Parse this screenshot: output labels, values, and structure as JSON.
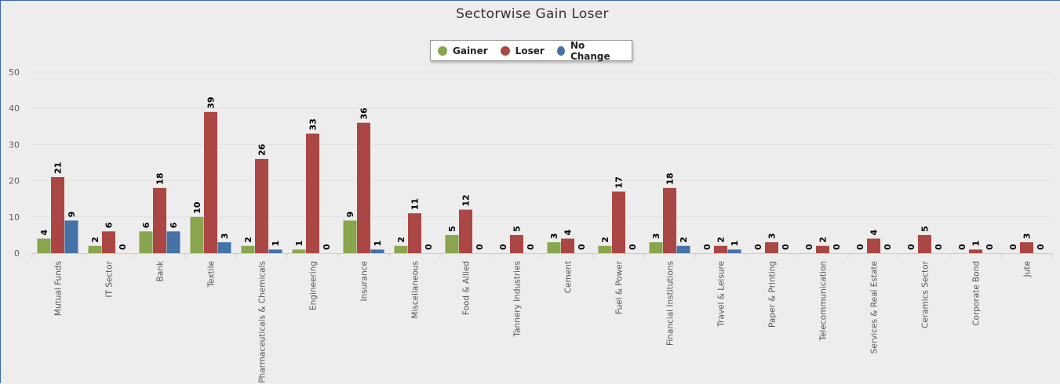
{
  "chart_data": {
    "type": "bar",
    "title": "Sectorwise Gain Loser",
    "categories": [
      "Mutual Funds",
      "IT Sector",
      "Bank",
      "Textile",
      "Pharmaceuticals & Chemicals",
      "Engineering",
      "Insurance",
      "Miscellaneous",
      "Food & Allied",
      "Tannery Industries",
      "Cement",
      "Fuel & Power",
      "Financial Institutions",
      "Travel & Leisure",
      "Paper & Printing",
      "Telecommunication",
      "Services & Real Estate",
      "Ceramics Sector",
      "Corporate Bond",
      "Jute"
    ],
    "series": [
      {
        "name": "Gainer",
        "color": "#89a54e",
        "values": [
          4,
          2,
          6,
          10,
          2,
          1,
          9,
          2,
          5,
          0,
          3,
          2,
          3,
          0,
          0,
          0,
          0,
          0,
          0,
          0
        ]
      },
      {
        "name": "Loser",
        "color": "#aa4643",
        "values": [
          21,
          6,
          18,
          39,
          26,
          33,
          36,
          11,
          12,
          5,
          4,
          17,
          18,
          2,
          3,
          2,
          4,
          5,
          1,
          3
        ]
      },
      {
        "name": "No Change",
        "color": "#4572a7",
        "values": [
          9,
          0,
          6,
          3,
          1,
          0,
          1,
          0,
          0,
          0,
          0,
          0,
          2,
          1,
          0,
          0,
          0,
          0,
          0,
          0
        ]
      }
    ],
    "ylim": [
      0,
      50
    ],
    "yticks": [
      0,
      10,
      20,
      30,
      40,
      50
    ],
    "grid": true,
    "legend_position": "top-center",
    "data_labels": true
  }
}
